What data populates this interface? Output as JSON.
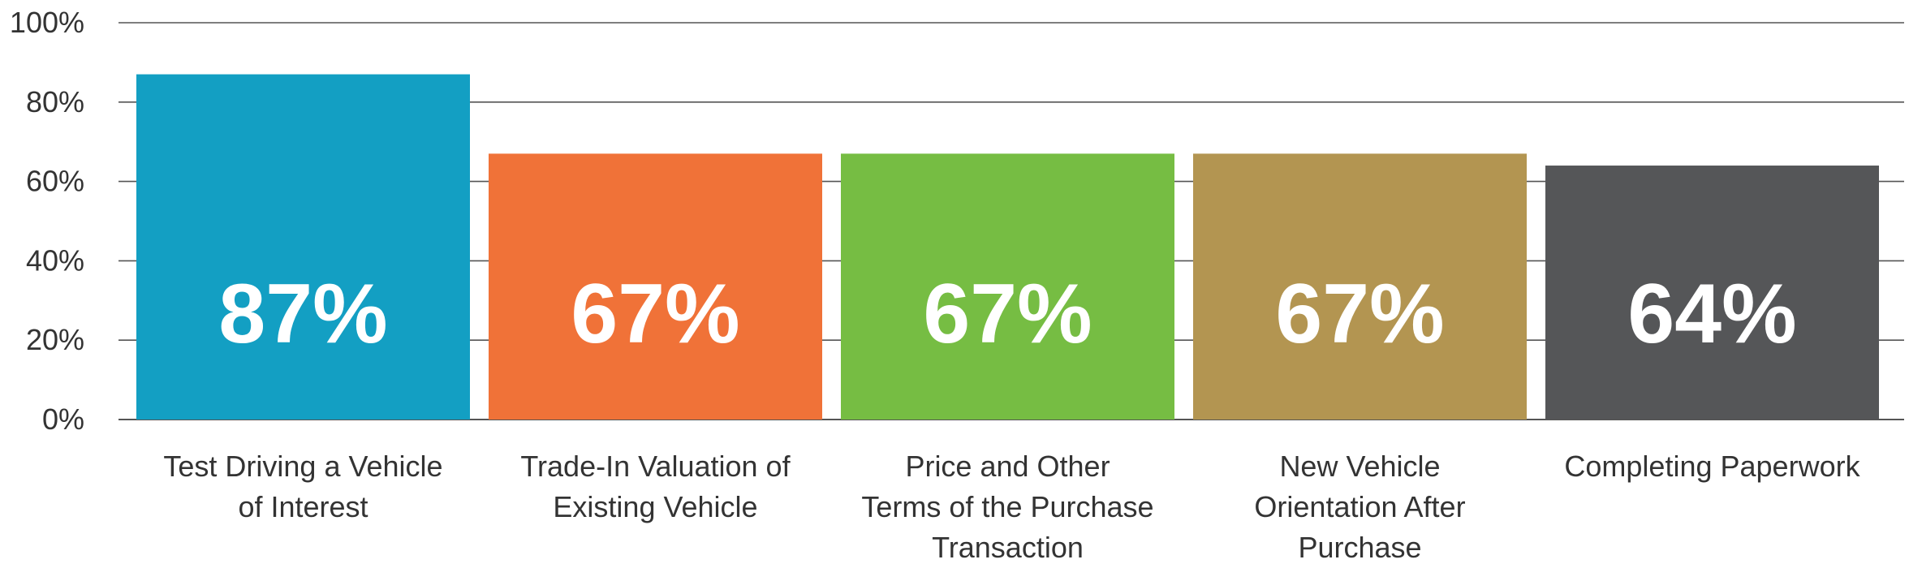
{
  "chart_data": {
    "type": "bar",
    "title": "",
    "xlabel": "",
    "ylabel": "",
    "ylim": [
      0,
      100
    ],
    "yticks": [
      0,
      20,
      40,
      60,
      80,
      100
    ],
    "ytick_labels": [
      "0%",
      "20%",
      "40%",
      "60%",
      "80%",
      "100%"
    ],
    "grid": true,
    "categories": [
      [
        "Test Driving a Vehicle",
        "of Interest"
      ],
      [
        "Trade-In Valuation of",
        "Existing Vehicle"
      ],
      [
        "Price and Other",
        "Terms of the Purchase",
        "Transaction"
      ],
      [
        "New Vehicle",
        "Orientation After",
        "Purchase"
      ],
      [
        "Completing Paperwork"
      ]
    ],
    "values": [
      87,
      67,
      67,
      67,
      64
    ],
    "data_labels": [
      "87%",
      "67%",
      "67%",
      "67%",
      "64%"
    ],
    "colors": [
      "#139fc3",
      "#f07238",
      "#76bd43",
      "#b39551",
      "#555658"
    ],
    "label_color": "#ffffff",
    "gridline_color": "#555555",
    "text_color": "#333333"
  }
}
